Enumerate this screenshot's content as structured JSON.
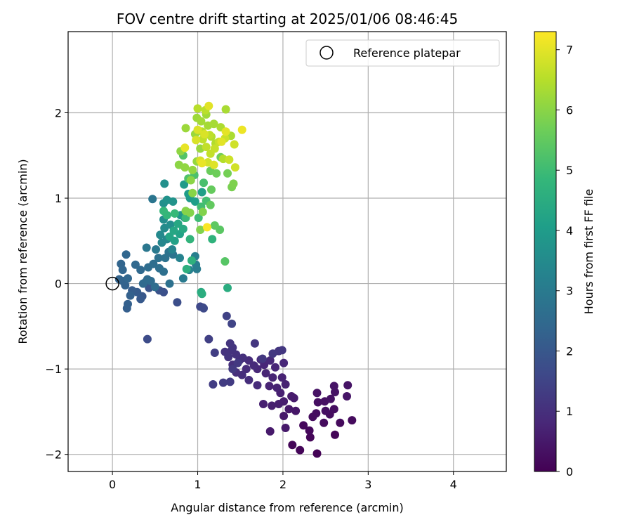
{
  "chart_data": {
    "type": "scatter",
    "title": "FOV centre drift starting at 2025/01/06 08:46:45",
    "xlabel": "Angular distance from reference (arcmin)",
    "ylabel": "Rotation from reference (arcmin)",
    "xlim": [
      -0.52,
      4.62
    ],
    "ylim": [
      -2.2,
      2.95
    ],
    "xticks": [
      0,
      1,
      2,
      3,
      4
    ],
    "yticks": [
      -2,
      -1,
      0,
      1,
      2
    ],
    "xtick_labels": [
      "0",
      "1",
      "2",
      "3",
      "4"
    ],
    "ytick_labels": [
      "−2",
      "−1",
      "0",
      "1",
      "2"
    ],
    "grid": true,
    "legend": {
      "position": "top-right",
      "entries": [
        "Reference platepar"
      ]
    },
    "reference_point": {
      "x": 0,
      "y": 0,
      "label": "Reference platepar"
    },
    "colorbar": {
      "label": "Hours from first FF file",
      "range": [
        0,
        7.3
      ],
      "ticks": [
        0,
        1,
        2,
        3,
        4,
        5,
        6,
        7
      ],
      "tick_labels": [
        "0",
        "1",
        "2",
        "3",
        "4",
        "5",
        "6",
        "7"
      ],
      "colormap": "viridis",
      "colormap_stops": [
        "#440154",
        "#482878",
        "#3e4989",
        "#31688e",
        "#26828e",
        "#1f9e89",
        "#35b779",
        "#6ece58",
        "#b5de2b",
        "#fde725"
      ]
    },
    "marker_color_encoding": "hours",
    "points": [
      {
        "x": 2.4,
        "y": -1.99,
        "c": 0.05
      },
      {
        "x": 2.2,
        "y": -1.95,
        "c": 0.08
      },
      {
        "x": 2.11,
        "y": -1.89,
        "c": 0.1
      },
      {
        "x": 2.61,
        "y": -1.77,
        "c": 0.1
      },
      {
        "x": 2.32,
        "y": -1.8,
        "c": 0.12
      },
      {
        "x": 2.31,
        "y": -1.72,
        "c": 0.15
      },
      {
        "x": 2.24,
        "y": -1.66,
        "c": 0.15
      },
      {
        "x": 2.67,
        "y": -1.63,
        "c": 0.18
      },
      {
        "x": 2.81,
        "y": -1.6,
        "c": 0.2
      },
      {
        "x": 2.48,
        "y": -1.63,
        "c": 0.2
      },
      {
        "x": 2.35,
        "y": -1.56,
        "c": 0.22
      },
      {
        "x": 2.39,
        "y": -1.52,
        "c": 0.25
      },
      {
        "x": 2.55,
        "y": -1.53,
        "c": 0.25
      },
      {
        "x": 2.6,
        "y": -1.47,
        "c": 0.28
      },
      {
        "x": 2.5,
        "y": -1.49,
        "c": 0.3
      },
      {
        "x": 2.41,
        "y": -1.39,
        "c": 0.3
      },
      {
        "x": 2.49,
        "y": -1.38,
        "c": 0.32
      },
      {
        "x": 2.4,
        "y": -1.28,
        "c": 0.35
      },
      {
        "x": 2.56,
        "y": -1.35,
        "c": 0.35
      },
      {
        "x": 2.61,
        "y": -1.27,
        "c": 0.38
      },
      {
        "x": 2.6,
        "y": -1.2,
        "c": 0.4
      },
      {
        "x": 2.76,
        "y": -1.19,
        "c": 0.4
      },
      {
        "x": 2.75,
        "y": -1.32,
        "c": 0.42
      },
      {
        "x": 2.15,
        "y": -1.49,
        "c": 0.45
      },
      {
        "x": 2.07,
        "y": -1.47,
        "c": 0.48
      },
      {
        "x": 2.01,
        "y": -1.55,
        "c": 0.5
      },
      {
        "x": 2.03,
        "y": -1.69,
        "c": 0.5
      },
      {
        "x": 1.85,
        "y": -1.73,
        "c": 0.52
      },
      {
        "x": 2.13,
        "y": -1.34,
        "c": 0.55
      },
      {
        "x": 2.1,
        "y": -1.32,
        "c": 0.55
      },
      {
        "x": 2.01,
        "y": -1.38,
        "c": 0.58
      },
      {
        "x": 1.95,
        "y": -1.41,
        "c": 0.6
      },
      {
        "x": 1.87,
        "y": -1.43,
        "c": 0.62
      },
      {
        "x": 1.77,
        "y": -1.41,
        "c": 0.65
      },
      {
        "x": 1.97,
        "y": -1.28,
        "c": 0.65
      },
      {
        "x": 2.03,
        "y": -1.18,
        "c": 0.68
      },
      {
        "x": 1.99,
        "y": -1.1,
        "c": 0.7
      },
      {
        "x": 1.93,
        "y": -1.22,
        "c": 0.7
      },
      {
        "x": 1.84,
        "y": -1.2,
        "c": 0.72
      },
      {
        "x": 1.88,
        "y": -1.1,
        "c": 0.75
      },
      {
        "x": 1.8,
        "y": -1.05,
        "c": 0.75
      },
      {
        "x": 1.91,
        "y": -0.98,
        "c": 0.78
      },
      {
        "x": 2.01,
        "y": -0.93,
        "c": 0.8
      },
      {
        "x": 1.78,
        "y": -0.95,
        "c": 0.8
      },
      {
        "x": 1.7,
        "y": -1.0,
        "c": 0.82
      },
      {
        "x": 1.85,
        "y": -0.9,
        "c": 0.85
      },
      {
        "x": 1.74,
        "y": -0.89,
        "c": 0.85
      },
      {
        "x": 1.66,
        "y": -0.96,
        "c": 0.88
      },
      {
        "x": 1.6,
        "y": -0.9,
        "c": 0.9
      },
      {
        "x": 1.57,
        "y": -1.0,
        "c": 0.9
      },
      {
        "x": 1.7,
        "y": -1.19,
        "c": 0.92
      },
      {
        "x": 1.6,
        "y": -1.13,
        "c": 0.95
      },
      {
        "x": 1.52,
        "y": -1.07,
        "c": 0.95
      },
      {
        "x": 1.45,
        "y": -1.04,
        "c": 0.98
      },
      {
        "x": 1.41,
        "y": -0.95,
        "c": 1.0
      },
      {
        "x": 1.49,
        "y": -0.9,
        "c": 1.0
      },
      {
        "x": 1.53,
        "y": -0.87,
        "c": 1.02
      },
      {
        "x": 1.45,
        "y": -0.83,
        "c": 1.05
      },
      {
        "x": 1.4,
        "y": -0.78,
        "c": 1.05
      },
      {
        "x": 1.32,
        "y": -0.8,
        "c": 1.08
      },
      {
        "x": 1.36,
        "y": -0.86,
        "c": 1.1
      },
      {
        "x": 1.41,
        "y": -0.75,
        "c": 1.1
      },
      {
        "x": 1.38,
        "y": -0.7,
        "c": 1.12
      },
      {
        "x": 1.67,
        "y": -0.7,
        "c": 1.15
      },
      {
        "x": 1.95,
        "y": -0.79,
        "c": 1.15
      },
      {
        "x": 1.99,
        "y": -0.78,
        "c": 1.18
      },
      {
        "x": 1.88,
        "y": -0.82,
        "c": 1.2
      },
      {
        "x": 1.76,
        "y": -0.88,
        "c": 1.2
      },
      {
        "x": 1.47,
        "y": -0.93,
        "c": 1.22
      },
      {
        "x": 1.41,
        "y": -1.0,
        "c": 1.25
      },
      {
        "x": 1.38,
        "y": -1.15,
        "c": 1.28
      },
      {
        "x": 1.3,
        "y": -1.16,
        "c": 1.3
      },
      {
        "x": 1.18,
        "y": -1.18,
        "c": 1.32
      },
      {
        "x": 1.2,
        "y": -0.81,
        "c": 1.35
      },
      {
        "x": 1.13,
        "y": -0.65,
        "c": 1.4
      },
      {
        "x": 1.34,
        "y": -0.38,
        "c": 1.45
      },
      {
        "x": 1.4,
        "y": -0.47,
        "c": 1.5
      },
      {
        "x": 1.06,
        "y": -0.28,
        "c": 1.55
      },
      {
        "x": 1.03,
        "y": -0.27,
        "c": 1.6
      },
      {
        "x": 1.07,
        "y": -0.29,
        "c": 1.65
      },
      {
        "x": 0.41,
        "y": -0.65,
        "c": 1.7
      },
      {
        "x": 0.76,
        "y": -0.22,
        "c": 1.75
      },
      {
        "x": 0.6,
        "y": -0.1,
        "c": 1.8
      },
      {
        "x": 0.55,
        "y": -0.08,
        "c": 1.85
      },
      {
        "x": 0.43,
        "y": -0.05,
        "c": 1.9
      },
      {
        "x": 0.39,
        "y": 0.02,
        "c": 1.95
      },
      {
        "x": 0.35,
        "y": -0.15,
        "c": 2.0
      },
      {
        "x": 0.33,
        "y": -0.18,
        "c": 2.05
      },
      {
        "x": 0.29,
        "y": -0.1,
        "c": 2.1
      },
      {
        "x": 0.23,
        "y": -0.08,
        "c": 2.15
      },
      {
        "x": 0.17,
        "y": -0.29,
        "c": 2.2
      },
      {
        "x": 0.18,
        "y": -0.24,
        "c": 2.22
      },
      {
        "x": 0.21,
        "y": -0.14,
        "c": 2.25
      },
      {
        "x": 0.15,
        "y": -0.02,
        "c": 2.28
      },
      {
        "x": 0.12,
        "y": 0.03,
        "c": 2.3
      },
      {
        "x": 0.08,
        "y": 0.05,
        "c": 2.32
      },
      {
        "x": 0.1,
        "y": 0.23,
        "c": 2.35
      },
      {
        "x": 0.12,
        "y": 0.16,
        "c": 2.38
      },
      {
        "x": 0.18,
        "y": 0.06,
        "c": 2.4
      },
      {
        "x": 0.16,
        "y": 0.34,
        "c": 2.42
      },
      {
        "x": 0.27,
        "y": 0.22,
        "c": 2.45
      },
      {
        "x": 0.33,
        "y": 0.16,
        "c": 2.48
      },
      {
        "x": 0.36,
        "y": 0.0,
        "c": 2.5
      },
      {
        "x": 0.41,
        "y": 0.05,
        "c": 2.52
      },
      {
        "x": 0.45,
        "y": 0.03,
        "c": 2.55
      },
      {
        "x": 0.5,
        "y": -0.04,
        "c": 2.58
      },
      {
        "x": 0.42,
        "y": 0.19,
        "c": 2.6
      },
      {
        "x": 0.48,
        "y": 0.23,
        "c": 2.62
      },
      {
        "x": 0.55,
        "y": 0.18,
        "c": 2.65
      },
      {
        "x": 0.6,
        "y": 0.14,
        "c": 2.68
      },
      {
        "x": 0.67,
        "y": 0.0,
        "c": 2.7
      },
      {
        "x": 0.54,
        "y": 0.3,
        "c": 2.72
      },
      {
        "x": 0.62,
        "y": 0.3,
        "c": 2.75
      },
      {
        "x": 0.66,
        "y": 0.37,
        "c": 2.78
      },
      {
        "x": 0.71,
        "y": 0.34,
        "c": 2.8
      },
      {
        "x": 0.47,
        "y": 0.99,
        "c": 2.85
      },
      {
        "x": 0.4,
        "y": 0.42,
        "c": 2.9
      },
      {
        "x": 0.51,
        "y": 0.4,
        "c": 2.95
      },
      {
        "x": 0.83,
        "y": 0.06,
        "c": 3.0
      },
      {
        "x": 0.99,
        "y": 0.17,
        "c": 3.05
      },
      {
        "x": 0.98,
        "y": 0.22,
        "c": 3.1
      },
      {
        "x": 0.97,
        "y": 0.32,
        "c": 3.15
      },
      {
        "x": 0.9,
        "y": 0.16,
        "c": 3.2
      },
      {
        "x": 0.79,
        "y": 0.3,
        "c": 3.25
      },
      {
        "x": 0.7,
        "y": 0.4,
        "c": 3.3
      },
      {
        "x": 0.58,
        "y": 0.48,
        "c": 3.35
      },
      {
        "x": 0.64,
        "y": 0.52,
        "c": 3.4
      },
      {
        "x": 0.56,
        "y": 0.57,
        "c": 3.45
      },
      {
        "x": 0.61,
        "y": 0.65,
        "c": 3.5
      },
      {
        "x": 0.6,
        "y": 0.75,
        "c": 3.55
      },
      {
        "x": 0.68,
        "y": 0.69,
        "c": 3.6
      },
      {
        "x": 0.6,
        "y": 0.94,
        "c": 3.62
      },
      {
        "x": 0.61,
        "y": 1.17,
        "c": 3.65
      },
      {
        "x": 0.64,
        "y": 0.98,
        "c": 3.7
      },
      {
        "x": 0.71,
        "y": 0.96,
        "c": 3.75
      },
      {
        "x": 0.8,
        "y": 0.8,
        "c": 3.8
      },
      {
        "x": 0.85,
        "y": 0.77,
        "c": 3.85
      },
      {
        "x": 0.91,
        "y": 1.0,
        "c": 3.9
      },
      {
        "x": 0.84,
        "y": 1.16,
        "c": 3.95
      },
      {
        "x": 0.89,
        "y": 1.05,
        "c": 4.0
      },
      {
        "x": 0.97,
        "y": 0.96,
        "c": 4.05
      },
      {
        "x": 1.05,
        "y": 1.07,
        "c": 4.1
      },
      {
        "x": 0.73,
        "y": 0.5,
        "c": 4.15
      },
      {
        "x": 0.79,
        "y": 0.58,
        "c": 4.2
      },
      {
        "x": 0.67,
        "y": 0.55,
        "c": 4.25
      },
      {
        "x": 0.72,
        "y": 0.62,
        "c": 4.3
      },
      {
        "x": 0.77,
        "y": 0.7,
        "c": 4.35
      },
      {
        "x": 0.83,
        "y": 0.64,
        "c": 4.4
      },
      {
        "x": 1.04,
        "y": -0.1,
        "c": 4.45
      },
      {
        "x": 1.35,
        "y": -0.05,
        "c": 4.5
      },
      {
        "x": 1.05,
        "y": -0.12,
        "c": 4.55
      },
      {
        "x": 0.87,
        "y": 0.17,
        "c": 4.6
      },
      {
        "x": 0.93,
        "y": 0.27,
        "c": 4.65
      },
      {
        "x": 1.17,
        "y": 0.52,
        "c": 4.7
      },
      {
        "x": 0.91,
        "y": 0.52,
        "c": 4.75
      },
      {
        "x": 0.64,
        "y": 0.8,
        "c": 4.8
      },
      {
        "x": 0.6,
        "y": 0.85,
        "c": 4.85
      },
      {
        "x": 0.73,
        "y": 0.82,
        "c": 4.9
      },
      {
        "x": 0.86,
        "y": 0.77,
        "c": 4.95
      },
      {
        "x": 1.01,
        "y": 0.77,
        "c": 5.0
      },
      {
        "x": 1.04,
        "y": 0.9,
        "c": 5.05
      },
      {
        "x": 1.1,
        "y": 0.97,
        "c": 5.1
      },
      {
        "x": 1.07,
        "y": 1.18,
        "c": 5.15
      },
      {
        "x": 0.96,
        "y": 1.27,
        "c": 5.2
      },
      {
        "x": 0.89,
        "y": 1.23,
        "c": 5.25
      },
      {
        "x": 0.83,
        "y": 1.5,
        "c": 5.3
      },
      {
        "x": 1.32,
        "y": 0.26,
        "c": 5.35
      },
      {
        "x": 1.26,
        "y": 0.63,
        "c": 5.4
      },
      {
        "x": 1.2,
        "y": 0.68,
        "c": 5.45
      },
      {
        "x": 1.15,
        "y": 0.92,
        "c": 5.5
      },
      {
        "x": 1.16,
        "y": 1.1,
        "c": 5.55
      },
      {
        "x": 1.15,
        "y": 1.32,
        "c": 5.6
      },
      {
        "x": 1.22,
        "y": 1.29,
        "c": 5.65
      },
      {
        "x": 1.27,
        "y": 1.48,
        "c": 5.7
      },
      {
        "x": 1.35,
        "y": 1.29,
        "c": 5.75
      },
      {
        "x": 1.4,
        "y": 1.13,
        "c": 5.8
      },
      {
        "x": 1.42,
        "y": 1.17,
        "c": 5.85
      },
      {
        "x": 1.03,
        "y": 0.63,
        "c": 5.88
      },
      {
        "x": 1.06,
        "y": 0.84,
        "c": 5.9
      },
      {
        "x": 0.91,
        "y": 0.83,
        "c": 5.92
      },
      {
        "x": 0.86,
        "y": 0.85,
        "c": 5.95
      },
      {
        "x": 0.94,
        "y": 1.06,
        "c": 5.98
      },
      {
        "x": 0.92,
        "y": 1.21,
        "c": 6.0
      },
      {
        "x": 0.78,
        "y": 1.39,
        "c": 6.02
      },
      {
        "x": 0.8,
        "y": 1.55,
        "c": 6.05
      },
      {
        "x": 0.85,
        "y": 1.36,
        "c": 6.08
      },
      {
        "x": 0.94,
        "y": 1.33,
        "c": 6.1
      },
      {
        "x": 0.99,
        "y": 1.43,
        "c": 6.12
      },
      {
        "x": 1.03,
        "y": 1.58,
        "c": 6.15
      },
      {
        "x": 0.97,
        "y": 1.75,
        "c": 6.18
      },
      {
        "x": 0.86,
        "y": 1.82,
        "c": 6.2
      },
      {
        "x": 0.99,
        "y": 1.94,
        "c": 6.22
      },
      {
        "x": 1.1,
        "y": 1.98,
        "c": 6.25
      },
      {
        "x": 1.04,
        "y": 1.9,
        "c": 6.28
      },
      {
        "x": 1.12,
        "y": 1.85,
        "c": 6.3
      },
      {
        "x": 1.19,
        "y": 1.87,
        "c": 6.32
      },
      {
        "x": 1.33,
        "y": 2.04,
        "c": 6.35
      },
      {
        "x": 1.39,
        "y": 1.73,
        "c": 6.38
      },
      {
        "x": 1.27,
        "y": 1.83,
        "c": 6.4
      },
      {
        "x": 1.16,
        "y": 1.72,
        "c": 6.42
      },
      {
        "x": 1.21,
        "y": 1.64,
        "c": 6.45
      },
      {
        "x": 1.3,
        "y": 1.46,
        "c": 6.48
      },
      {
        "x": 1.05,
        "y": 1.78,
        "c": 6.5
      },
      {
        "x": 1.0,
        "y": 2.05,
        "c": 6.52
      },
      {
        "x": 1.09,
        "y": 2.03,
        "c": 6.55
      },
      {
        "x": 1.14,
        "y": 1.74,
        "c": 6.58
      },
      {
        "x": 1.06,
        "y": 1.69,
        "c": 6.6
      },
      {
        "x": 1.1,
        "y": 1.6,
        "c": 6.62
      },
      {
        "x": 1.15,
        "y": 1.52,
        "c": 6.65
      },
      {
        "x": 1.2,
        "y": 1.58,
        "c": 6.68
      },
      {
        "x": 1.25,
        "y": 1.66,
        "c": 6.7
      },
      {
        "x": 1.32,
        "y": 1.7,
        "c": 6.72
      },
      {
        "x": 1.37,
        "y": 1.45,
        "c": 6.75
      },
      {
        "x": 1.43,
        "y": 1.63,
        "c": 6.78
      },
      {
        "x": 1.44,
        "y": 1.36,
        "c": 6.8
      },
      {
        "x": 1.12,
        "y": 1.42,
        "c": 6.82
      },
      {
        "x": 1.03,
        "y": 1.44,
        "c": 6.85
      },
      {
        "x": 0.98,
        "y": 1.68,
        "c": 6.88
      },
      {
        "x": 1.08,
        "y": 1.75,
        "c": 6.9
      },
      {
        "x": 1.0,
        "y": 1.8,
        "c": 6.92
      },
      {
        "x": 1.19,
        "y": 1.39,
        "c": 6.95
      },
      {
        "x": 1.13,
        "y": 2.08,
        "c": 6.98
      },
      {
        "x": 1.28,
        "y": 1.66,
        "c": 7.0
      },
      {
        "x": 1.33,
        "y": 1.78,
        "c": 7.02
      },
      {
        "x": 0.85,
        "y": 1.59,
        "c": 7.05
      },
      {
        "x": 1.05,
        "y": 1.41,
        "c": 7.08
      },
      {
        "x": 1.52,
        "y": 1.8,
        "c": 7.12
      },
      {
        "x": 1.11,
        "y": 0.66,
        "c": 7.25
      }
    ]
  }
}
